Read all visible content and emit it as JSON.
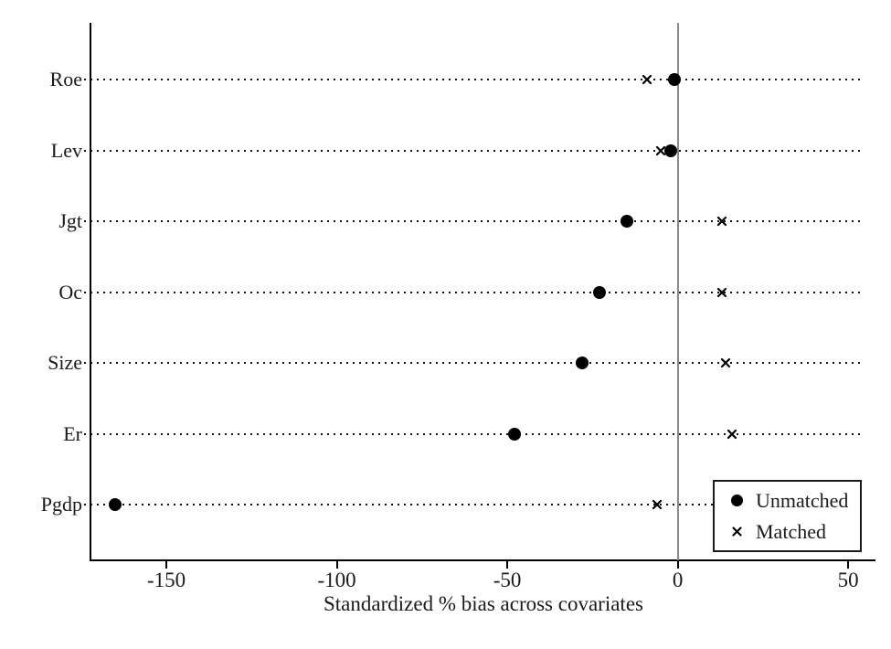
{
  "figure": {
    "background": "#ffffff",
    "foreground": "#000000",
    "zero_line_color": "#8a8a8a"
  },
  "chart_data": {
    "type": "scatter",
    "subtype": "horizontal-dot-plot",
    "title": "",
    "xlabel": "Standardized % bias across covariates",
    "ylabel": "",
    "categories": [
      "Roe",
      "Lev",
      "Jgt",
      "Oc",
      "Size",
      "Er",
      "Pgdp"
    ],
    "series": [
      {
        "name": "Unmatched",
        "marker": "filled-circle",
        "color": "#000000",
        "values": [
          -1,
          -2,
          -15,
          -23,
          -28,
          -48,
          -165
        ]
      },
      {
        "name": "Matched",
        "marker": "x-cross",
        "color": "#000000",
        "values": [
          -9,
          -5,
          13,
          13,
          14,
          16,
          -6
        ]
      }
    ],
    "x_ticks": [
      -150,
      -100,
      -50,
      0,
      50
    ],
    "xlim": [
      -172,
      58
    ],
    "grid": "dotted horizontal line per category",
    "zero_reference_line": 0,
    "legend_position": "inside-bottom-right"
  }
}
